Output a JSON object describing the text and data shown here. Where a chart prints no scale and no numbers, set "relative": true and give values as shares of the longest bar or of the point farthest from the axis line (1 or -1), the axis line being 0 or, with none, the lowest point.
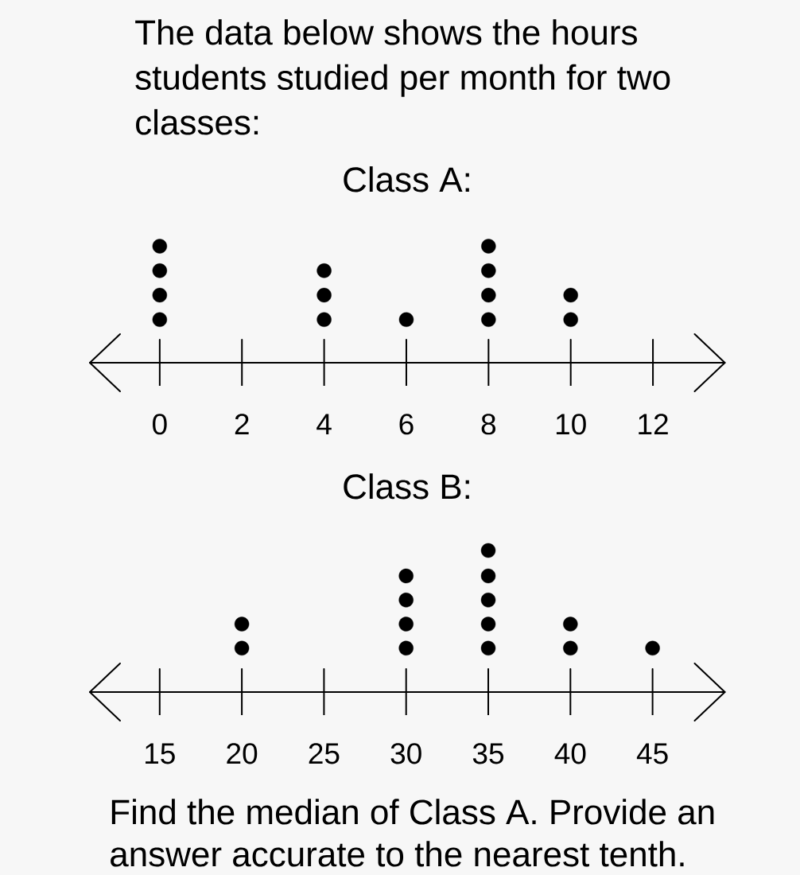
{
  "chart_data": [
    {
      "type": "scatter",
      "title": "The data below shows the hours students studied per month for two classes:",
      "subtitle": "Class A:",
      "x": [
        0,
        0,
        0,
        0,
        4,
        4,
        4,
        6,
        8,
        8,
        8,
        8,
        10,
        10
      ],
      "values": [
        0.37,
        0.58,
        0.79,
        1,
        0.37,
        0.58,
        0.79,
        0.37,
        0.37,
        0.58,
        0.79,
        1,
        0.37,
        0.58
      ],
      "relative": true,
      "color": "#000000",
      "marker": "circle",
      "xlim": [
        -1.7,
        13.75
      ],
      "xticks": [
        0,
        2,
        4,
        6,
        8,
        10,
        12
      ]
    },
    {
      "type": "scatter",
      "title": "Class B:",
      "x": [
        20,
        20,
        30,
        30,
        30,
        30,
        35,
        35,
        35,
        35,
        35,
        40,
        40,
        45
      ],
      "values": [
        0.31,
        0.48,
        0.31,
        0.48,
        0.65,
        0.82,
        0.31,
        0.48,
        0.65,
        0.82,
        1,
        0.31,
        0.48,
        0.31
      ],
      "relative": true,
      "color": "#000000",
      "marker": "circle",
      "xlim": [
        10.75,
        49.4
      ],
      "xticks": [
        15,
        20,
        25,
        30,
        35,
        40,
        45
      ],
      "annotations": [
        "Find the median of Class A. Provide an answer accurate to the nearest tenth."
      ]
    }
  ]
}
